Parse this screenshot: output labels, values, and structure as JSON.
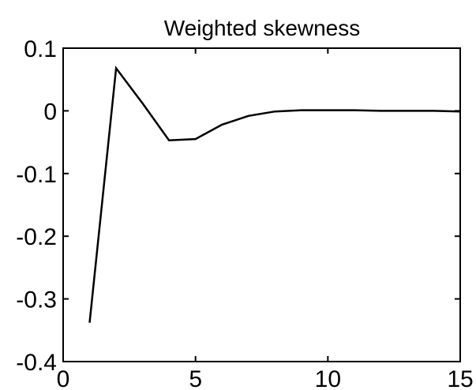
{
  "chart_data": {
    "type": "line",
    "title": "Weighted skewness",
    "xlabel": "",
    "ylabel": "",
    "xlim": [
      0,
      15
    ],
    "ylim": [
      -0.4,
      0.1
    ],
    "xticks": [
      0,
      5,
      10,
      15
    ],
    "xtick_labels": [
      "0",
      "5",
      "10",
      "15"
    ],
    "yticks": [
      0.1,
      0,
      -0.1,
      -0.2,
      -0.3,
      -0.4
    ],
    "ytick_labels": [
      "0.1",
      "0",
      "-0.1",
      "-0.2",
      "-0.3",
      "-0.4"
    ],
    "grid": false,
    "series": [
      {
        "x": [
          1,
          2,
          3,
          4,
          5,
          6,
          7,
          8,
          9,
          10,
          11,
          12,
          13,
          14,
          15
        ],
        "y": [
          -0.338,
          0.068,
          0.012,
          -0.047,
          -0.045,
          -0.022,
          -0.008,
          -0.001,
          0.001,
          0.001,
          0.001,
          0.0,
          0.0,
          0.0,
          -0.001
        ],
        "color": "#000000"
      }
    ]
  }
}
